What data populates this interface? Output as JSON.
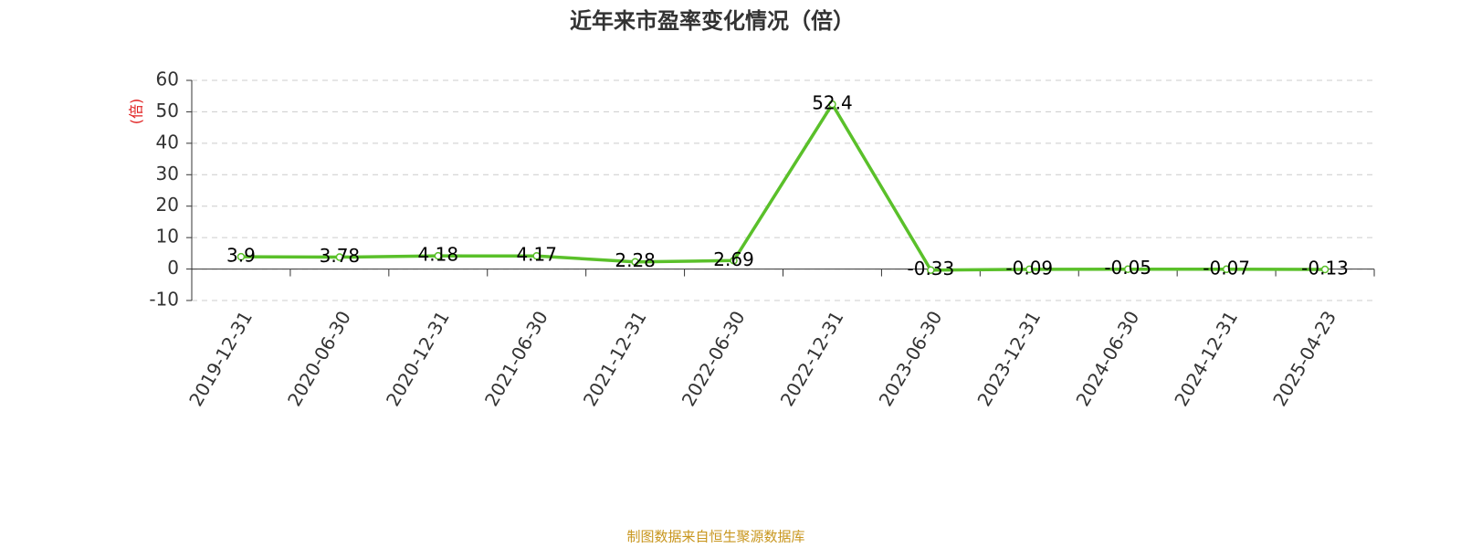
{
  "chart_data": {
    "type": "line",
    "title": "近年来市盈率变化情况（倍）",
    "y_label": "(倍)",
    "source": "制图数据来自恒生聚源数据库",
    "categories": [
      "2019-12-31",
      "2020-06-30",
      "2020-12-31",
      "2021-06-30",
      "2021-12-31",
      "2022-06-30",
      "2022-12-31",
      "2023-06-30",
      "2023-12-31",
      "2024-06-30",
      "2024-12-31",
      "2025-04-23"
    ],
    "series": [
      {
        "name": "市盈率",
        "color": "#5ac02a",
        "values": [
          3.9,
          3.78,
          4.18,
          4.17,
          2.28,
          2.69,
          52.4,
          -0.33,
          -0.09,
          -0.05,
          -0.07,
          -0.13
        ]
      }
    ],
    "ylim": [
      -10,
      60
    ],
    "yticks": [
      -10,
      0,
      10,
      20,
      30,
      40,
      50,
      60
    ],
    "grid": true
  }
}
